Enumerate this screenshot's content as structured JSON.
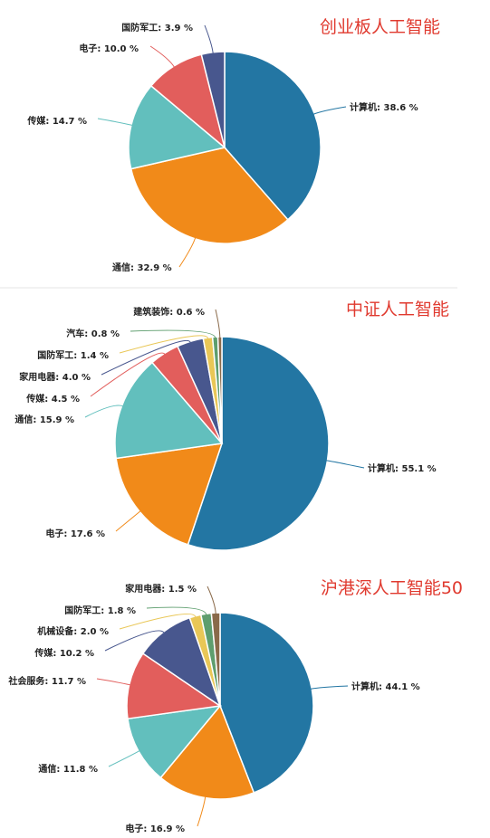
{
  "chart_data": [
    {
      "type": "pie",
      "title": "创业板人工智能",
      "slices": [
        {
          "name": "计算机",
          "value": 38.6,
          "label": "计算机: 38.6 %",
          "color": "#2376a3"
        },
        {
          "name": "通信",
          "value": 32.9,
          "label": "通信: 32.9 %",
          "color": "#f18a19"
        },
        {
          "name": "传媒",
          "value": 14.7,
          "label": "传媒: 14.7 %",
          "color": "#62bfbd"
        },
        {
          "name": "电子",
          "value": 10.0,
          "label": "电子: 10.0 %",
          "color": "#e25e5c"
        },
        {
          "name": "国防军工",
          "value": 3.9,
          "label": "国防军工: 3.9 %",
          "color": "#48578e"
        }
      ]
    },
    {
      "type": "pie",
      "title": "中证人工智能",
      "slices": [
        {
          "name": "计算机",
          "value": 55.1,
          "label": "计算机: 55.1 %",
          "color": "#2376a3"
        },
        {
          "name": "电子",
          "value": 17.6,
          "label": "电子: 17.6 %",
          "color": "#f18a19"
        },
        {
          "name": "通信",
          "value": 15.9,
          "label": "通信: 15.9 %",
          "color": "#62bfbd"
        },
        {
          "name": "传媒",
          "value": 4.5,
          "label": "传媒: 4.5 %",
          "color": "#e25e5c"
        },
        {
          "name": "家用电器",
          "value": 4.0,
          "label": "家用电器: 4.0 %",
          "color": "#48578e"
        },
        {
          "name": "国防军工",
          "value": 1.4,
          "label": "国防军工: 1.4 %",
          "color": "#e9c757"
        },
        {
          "name": "汽车",
          "value": 0.8,
          "label": "汽车: 0.8 %",
          "color": "#5e9e6e"
        },
        {
          "name": "建筑装饰",
          "value": 0.6,
          "label": "建筑装饰: 0.6 %",
          "color": "#8a6a4a"
        }
      ]
    },
    {
      "type": "pie",
      "title": "沪港深人工智能50",
      "slices": [
        {
          "name": "计算机",
          "value": 44.1,
          "label": "计算机: 44.1 %",
          "color": "#2376a3"
        },
        {
          "name": "电子",
          "value": 16.9,
          "label": "电子: 16.9 %",
          "color": "#f18a19"
        },
        {
          "name": "通信",
          "value": 11.8,
          "label": "通信: 11.8 %",
          "color": "#62bfbd"
        },
        {
          "name": "社会服务",
          "value": 11.7,
          "label": "社会服务: 11.7 %",
          "color": "#e25e5c"
        },
        {
          "name": "传媒",
          "value": 10.2,
          "label": "传媒: 10.2 %",
          "color": "#48578e"
        },
        {
          "name": "机械设备",
          "value": 2.0,
          "label": "机械设备: 2.0 %",
          "color": "#e9c757"
        },
        {
          "name": "国防军工",
          "value": 1.8,
          "label": "国防军工: 1.8 %",
          "color": "#5e9e6e"
        },
        {
          "name": "家用电器",
          "value": 1.5,
          "label": "家用电器: 1.5 %",
          "color": "#8a6a4a"
        }
      ]
    }
  ]
}
